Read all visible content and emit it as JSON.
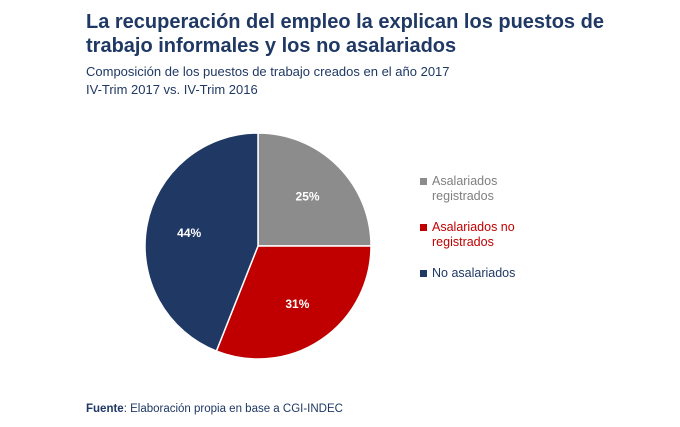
{
  "header": {
    "title": "La recuperación del empleo la explican los puestos de trabajo informales y los no asalariados",
    "subtitle_line1": "Composición de los puestos de trabajo creados en el año 2017",
    "subtitle_line2": "IV-Trim 2017 vs. IV-Trim 2016"
  },
  "chart_data": {
    "type": "pie",
    "title": "Composición de los puestos de trabajo creados en el año 2017",
    "subtitle": "IV-Trim 2017 vs. IV-Trim 2016",
    "slices": [
      {
        "label": "Asalariados registrados",
        "value": 25,
        "display": "25%",
        "color": "#8c8c8c"
      },
      {
        "label": "Asalariados no registrados",
        "value": 31,
        "display": "31%",
        "color": "#c00000"
      },
      {
        "label": "No asalariados",
        "value": 44,
        "display": "44%",
        "color": "#1f3864"
      }
    ],
    "legend_position": "right"
  },
  "legend": {
    "item1": "Asalariados registrados",
    "item2": "Asalariados no registrados",
    "item3": "No asalariados"
  },
  "source": {
    "label": "Fuente",
    "text": ": Elaboración propia en base a CGI-INDEC"
  },
  "colors": {
    "title": "#1f3864",
    "slice_gray": "#8c8c8c",
    "slice_red": "#c00000",
    "slice_navy": "#1f3864"
  }
}
